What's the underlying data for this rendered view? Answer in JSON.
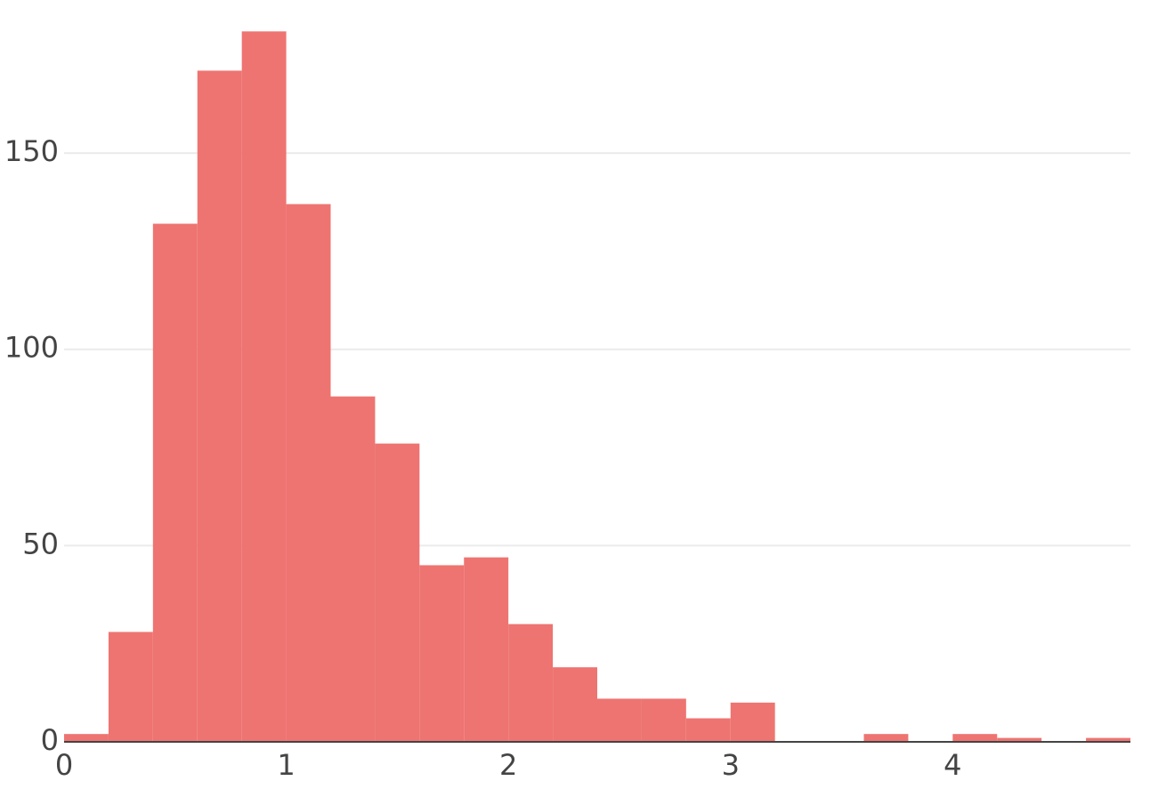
{
  "chart_data": {
    "type": "histogram",
    "bins": [
      0,
      0.2,
      0.4,
      0.6,
      0.8,
      1,
      1.2,
      1.4,
      1.6,
      1.8,
      2,
      2.2,
      2.4,
      2.6,
      2.8,
      3,
      3.2,
      3.4,
      3.6,
      3.8,
      4,
      4.2,
      4.4,
      4.6,
      4.8
    ],
    "values": [
      2,
      28,
      132,
      171,
      181,
      137,
      88,
      76,
      45,
      47,
      30,
      19,
      11,
      11,
      6,
      10,
      0,
      0,
      2,
      0,
      2,
      1,
      0,
      1
    ],
    "color": "#ee7471",
    "xlim": [
      0,
      4.8
    ],
    "xticks": [
      0,
      1,
      2,
      3,
      4
    ],
    "ylim": [
      0,
      189
    ],
    "yticks": [
      0,
      50,
      100,
      150
    ],
    "grid": true
  }
}
